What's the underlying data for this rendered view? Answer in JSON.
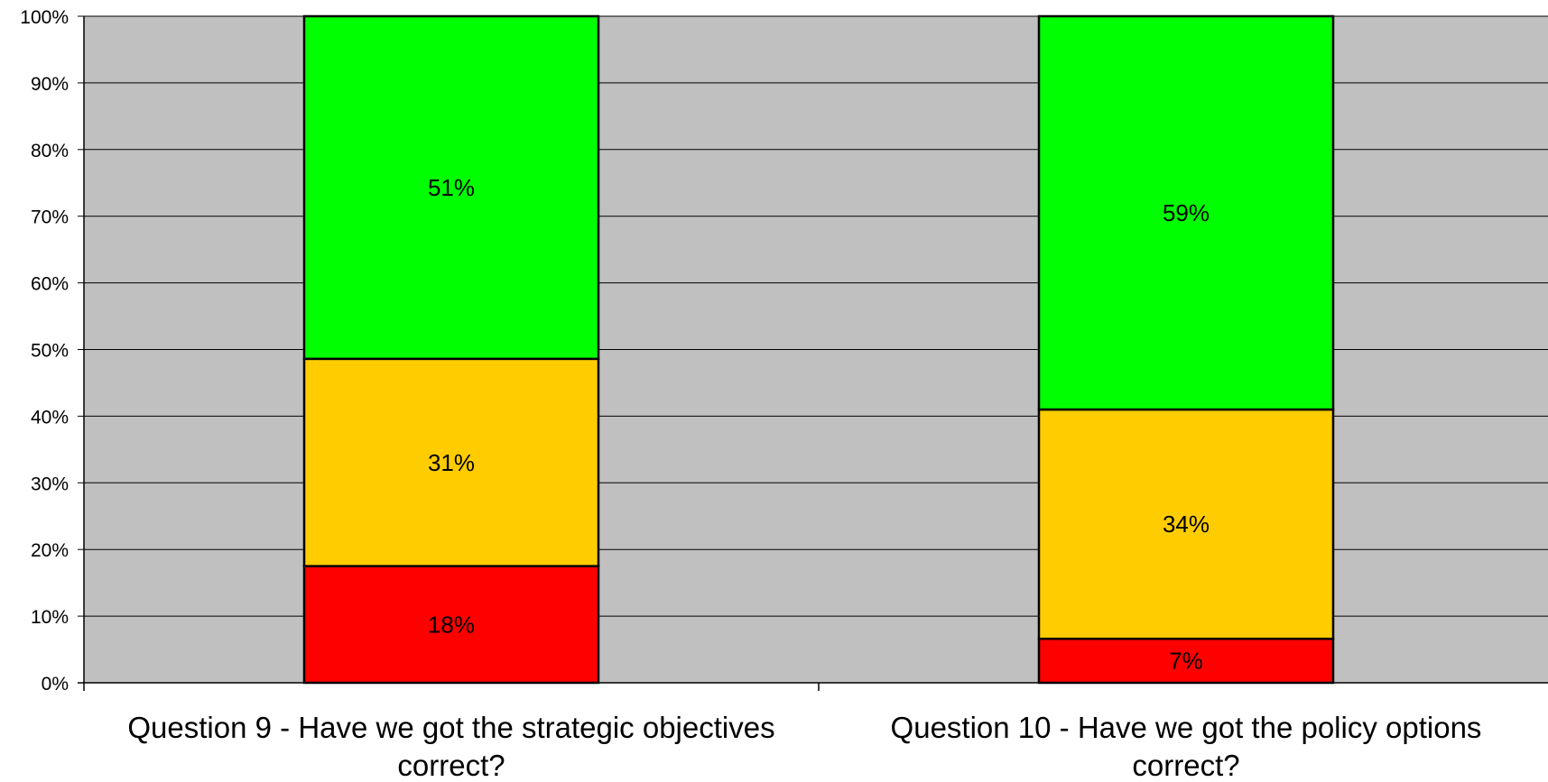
{
  "chart_data": {
    "type": "bar",
    "stacked": true,
    "normalized": true,
    "categories": [
      [
        "Question 9 - Have we got the strategic objectives",
        "correct?"
      ],
      [
        "Question 10 - Have we got the policy options",
        "correct?"
      ]
    ],
    "series": [
      {
        "color": "#ff0000",
        "values": [
          17.5,
          6.6
        ],
        "labels": [
          "18%",
          "7%"
        ]
      },
      {
        "color": "#ffcc00",
        "values": [
          31.1,
          34.4
        ],
        "labels": [
          "31%",
          "34%"
        ]
      },
      {
        "color": "#00ff00",
        "values": [
          51.4,
          59.0
        ],
        "labels": [
          "51%",
          "59%"
        ]
      }
    ],
    "y_ticks": [
      "0%",
      "10%",
      "20%",
      "30%",
      "40%",
      "50%",
      "60%",
      "70%",
      "80%",
      "90%",
      "100%"
    ],
    "ylim": [
      0,
      100
    ],
    "grid": true,
    "plot_background": "#c0c0c0",
    "legend": "none"
  }
}
